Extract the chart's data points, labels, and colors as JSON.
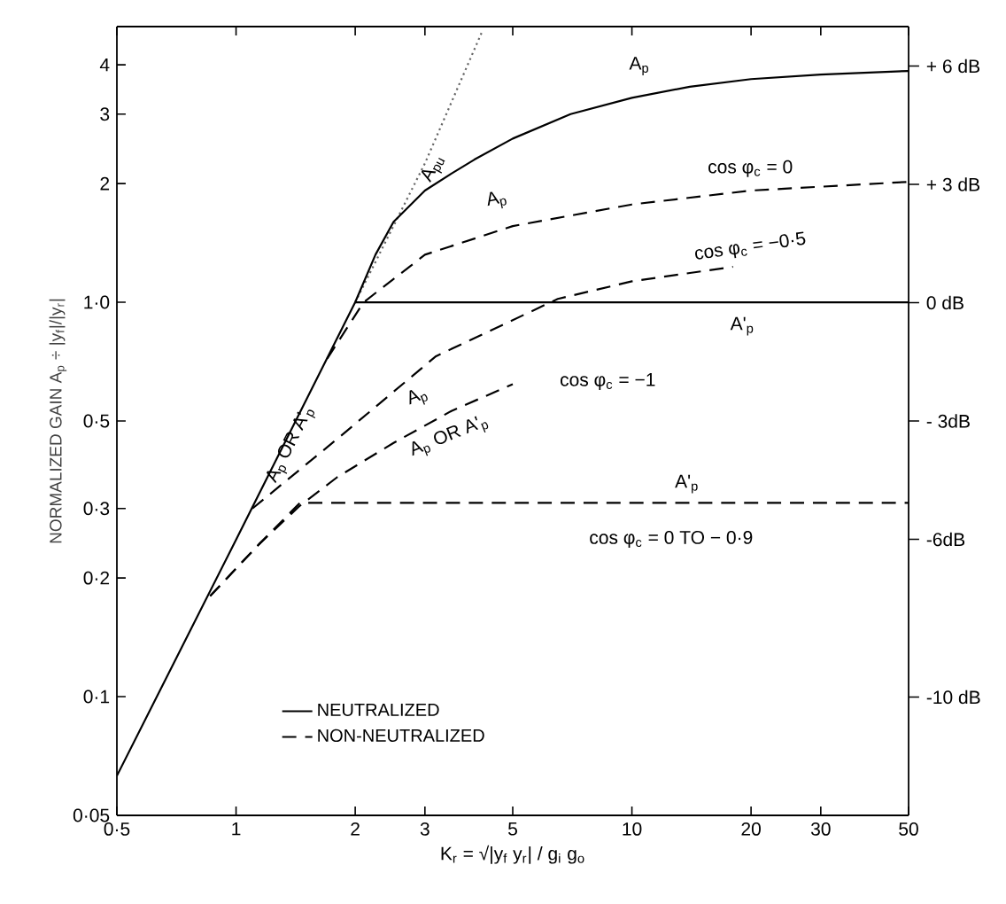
{
  "chart_data": {
    "type": "line",
    "xlabel": "K$_{r}$ = √|y$_{f}$  y$_{r}$| / g$_{i}$ g$_{o}$",
    "ylabel": "NORMALIZED GAIN  A$_{p}$ ÷ |y$_{f}$|/|y$_{r}$|",
    "log": "xy",
    "xlim": [
      0.5,
      50
    ],
    "ylim": [
      0.05,
      5
    ],
    "y2lim": [
      -13,
      7
    ],
    "xticks": [
      {
        "value": 0.5,
        "label": "0·5"
      },
      1,
      2,
      3,
      5,
      10,
      20,
      30,
      50
    ],
    "yticks": [
      {
        "value": 0.05,
        "label": "0·05"
      },
      {
        "value": 0.1,
        "label": "0·1"
      },
      {
        "value": 0.2,
        "label": "0·2"
      },
      {
        "value": 0.3,
        "label": "0·3"
      },
      {
        "value": 0.5,
        "label": "0·5"
      },
      {
        "value": 1,
        "label": "1·0"
      },
      2,
      3,
      4
    ],
    "y2ticks": [
      {
        "value": 6,
        "label": "+ 6 dB"
      },
      {
        "value": 3,
        "label": "+ 3 dB"
      },
      {
        "value": 0,
        "label": "0 dB"
      },
      {
        "value": -3,
        "label": "- 3dB"
      },
      {
        "value": -6,
        "label": "-6dB"
      },
      {
        "value": -10,
        "label": "-10 dB"
      }
    ],
    "legend": "bottom left",
    "series": [
      {
        "color": "#666666",
        "line_style": "dotted",
        "x": [
          2,
          3,
          4.2
        ],
        "values": [
          1.0,
          2.25,
          4.9
        ]
      },
      {
        "name": "NEUTRALIZED",
        "color": "#000000",
        "line_style": "solid",
        "x": [
          0.5,
          1,
          2,
          2.25,
          2.5,
          3,
          3.5,
          4,
          5,
          7,
          10,
          14,
          20,
          30,
          50
        ],
        "values": [
          0.063,
          0.25,
          1.0,
          1.32,
          1.6,
          1.92,
          2.12,
          2.3,
          2.6,
          3.0,
          3.3,
          3.52,
          3.68,
          3.78,
          3.86
        ]
      },
      {
        "color": "#000000",
        "line_style": "solid",
        "x": [
          2,
          50
        ],
        "values": [
          1.0,
          1.0
        ]
      },
      {
        "name": "NON-NEUTRALIZED",
        "color": "#000000",
        "line_style": "dashed",
        "x": [
          1.7,
          2.1,
          3,
          5,
          10,
          20,
          50
        ],
        "values": [
          0.72,
          1.0,
          1.32,
          1.56,
          1.77,
          1.92,
          2.02
        ]
      },
      {
        "color": "#000000",
        "line_style": "dashed",
        "x": [
          1.1,
          1.8,
          3.2,
          6.5,
          10,
          18
        ],
        "values": [
          0.3,
          0.45,
          0.73,
          1.02,
          1.13,
          1.23
        ]
      },
      {
        "color": "#000000",
        "line_style": "dashed",
        "x": [
          0.86,
          1.15,
          1.45,
          1.8,
          2.5,
          3.5,
          5
        ],
        "values": [
          0.18,
          0.245,
          0.305,
          0.36,
          0.44,
          0.53,
          0.62
        ]
      },
      {
        "color": "#000000",
        "line_style": "dashed",
        "x": [
          0.86,
          1.15,
          1.45,
          50
        ],
        "values": [
          0.18,
          0.245,
          0.31,
          0.31
        ]
      }
    ],
    "annotations": [
      "A$_{pu}$",
      "A$_{p}$",
      "cos φ$_{c}$ = 0",
      "A$_{p}$",
      "cos φ$_{c}$ = −0·5",
      "A'$_{p}$",
      "A$_{p}$ OR A'$_{p}$",
      "A$_{p}$",
      "cos φ$_{c}$ = −1",
      "A$_{p}$ OR A'$_{p}$",
      "A'$_{p}$",
      "cos φ$_{c}$ = 0 TO − 0·9"
    ]
  }
}
